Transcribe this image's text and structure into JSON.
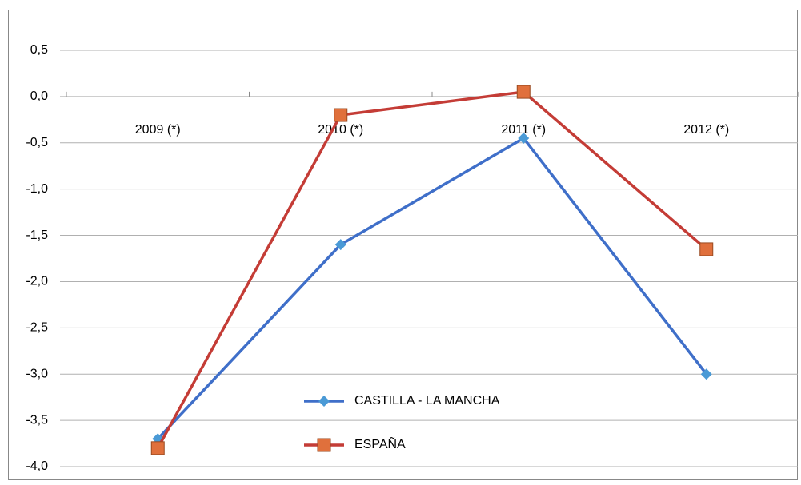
{
  "chart_data": {
    "type": "line",
    "categories": [
      "2009 (*)",
      "2010 (*)",
      "2011 (*)",
      "2012 (*)"
    ],
    "series": [
      {
        "name": "CASTILLA - LA MANCHA",
        "color": "#3f6fc9",
        "marker_color": "#4a9ad6",
        "marker": "diamond",
        "values": [
          -3.7,
          -1.6,
          -0.45,
          -3.0
        ]
      },
      {
        "name": "ESPAÑA",
        "color": "#c43c36",
        "marker_color": "#e0703c",
        "marker": "square",
        "values": [
          -3.8,
          -0.2,
          0.05,
          -1.65
        ]
      }
    ],
    "ylim": [
      -4.0,
      0.5
    ],
    "yticks": [
      {
        "value": 0.5,
        "label": "0,5"
      },
      {
        "value": 0.0,
        "label": "0,0"
      },
      {
        "value": -0.5,
        "label": "-0,5"
      },
      {
        "value": -1.0,
        "label": "-1,0"
      },
      {
        "value": -1.5,
        "label": "-1,5"
      },
      {
        "value": -2.0,
        "label": "-2,0"
      },
      {
        "value": -2.5,
        "label": "-2,5"
      },
      {
        "value": -3.0,
        "label": "-3,0"
      },
      {
        "value": -3.5,
        "label": "-3,5"
      },
      {
        "value": -4.0,
        "label": "-4,0"
      }
    ],
    "grid": true
  }
}
